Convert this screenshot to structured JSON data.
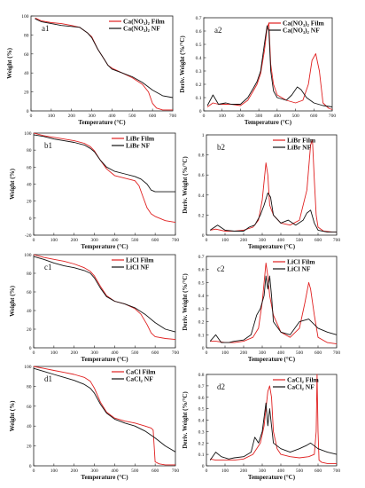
{
  "chart_data": [
    {
      "panel": "a1",
      "type": "line",
      "xlabel": "Temperature (°C)",
      "ylabel": "Weight (%)",
      "xlim": [
        0,
        700
      ],
      "ylim": [
        0,
        100
      ],
      "xticks": [
        0,
        100,
        200,
        300,
        400,
        500,
        600,
        700
      ],
      "yticks": [
        0,
        20,
        40,
        60,
        80,
        100
      ],
      "legend_position": "top-right",
      "series": [
        {
          "name": "Ca(NO₃)₂ Film",
          "color": "#e02020",
          "x": [
            20,
            50,
            100,
            150,
            200,
            240,
            280,
            300,
            330,
            360,
            380,
            400,
            450,
            500,
            550,
            580,
            600,
            620,
            650,
            680,
            700
          ],
          "y": [
            98,
            95,
            93,
            92,
            90,
            88,
            82,
            78,
            65,
            55,
            48,
            45,
            40,
            35,
            28,
            20,
            8,
            3,
            1,
            1,
            1
          ]
        },
        {
          "name": "Ca(NO₃)₂ NF",
          "color": "#111111",
          "x": [
            20,
            50,
            100,
            150,
            200,
            240,
            280,
            300,
            330,
            360,
            380,
            400,
            450,
            500,
            550,
            600,
            650,
            700
          ],
          "y": [
            97,
            94,
            92,
            90,
            89,
            88,
            82,
            77,
            65,
            55,
            48,
            44,
            40,
            36,
            30,
            22,
            16,
            14
          ]
        }
      ]
    },
    {
      "panel": "a2",
      "type": "line",
      "xlabel": "Temperature (°C)",
      "ylabel": "Deriv. Weight (%/°C)",
      "xlim": [
        0,
        700
      ],
      "ylim": [
        0,
        0.7
      ],
      "xticks": [
        0,
        100,
        200,
        300,
        400,
        500,
        600,
        700
      ],
      "yticks": [
        0,
        0.1,
        0.2,
        0.3,
        0.4,
        0.5,
        0.6,
        0.7
      ],
      "legend_position": "top-right",
      "series": [
        {
          "name": "Ca(NO₃)₂ Film",
          "color": "#e02020",
          "x": [
            20,
            50,
            80,
            120,
            150,
            200,
            240,
            270,
            290,
            310,
            330,
            345,
            355,
            365,
            380,
            400,
            450,
            500,
            540,
            570,
            590,
            610,
            630,
            650,
            680,
            700
          ],
          "y": [
            0.03,
            0.06,
            0.05,
            0.05,
            0.05,
            0.04,
            0.08,
            0.15,
            0.2,
            0.28,
            0.45,
            0.62,
            0.66,
            0.35,
            0.2,
            0.12,
            0.08,
            0.06,
            0.08,
            0.2,
            0.38,
            0.43,
            0.3,
            0.06,
            0.02,
            0.01
          ]
        },
        {
          "name": "Ca(NO₃)₂ NF",
          "color": "#111111",
          "x": [
            20,
            50,
            80,
            120,
            150,
            200,
            240,
            270,
            290,
            310,
            330,
            345,
            355,
            365,
            380,
            400,
            450,
            480,
            510,
            530,
            560,
            600,
            650,
            700
          ],
          "y": [
            0.04,
            0.12,
            0.05,
            0.06,
            0.05,
            0.05,
            0.1,
            0.17,
            0.22,
            0.3,
            0.5,
            0.64,
            0.6,
            0.3,
            0.15,
            0.1,
            0.08,
            0.12,
            0.18,
            0.16,
            0.1,
            0.06,
            0.04,
            0.03
          ]
        }
      ]
    },
    {
      "panel": "b1",
      "type": "line",
      "xlabel": "Temperature (°C)",
      "ylabel": "Weight (%)",
      "xlim": [
        0,
        700
      ],
      "ylim": [
        -20,
        100
      ],
      "xticks": [
        0,
        100,
        200,
        300,
        400,
        500,
        600,
        700
      ],
      "yticks": [
        -20,
        0,
        20,
        40,
        60,
        80,
        100
      ],
      "legend_position": "top-right",
      "series": [
        {
          "name": "LiBr Film",
          "color": "#e02020",
          "x": [
            0,
            50,
            100,
            150,
            200,
            250,
            280,
            300,
            330,
            360,
            400,
            450,
            500,
            520,
            540,
            560,
            580,
            600,
            620,
            650,
            700
          ],
          "y": [
            100,
            97,
            95,
            93,
            91,
            88,
            84,
            79,
            68,
            58,
            50,
            47,
            44,
            38,
            25,
            12,
            5,
            2,
            0,
            -3,
            -5
          ]
        },
        {
          "name": "LiBr NF",
          "color": "#111111",
          "x": [
            0,
            50,
            100,
            150,
            200,
            250,
            280,
            300,
            330,
            360,
            400,
            450,
            500,
            530,
            560,
            580,
            600,
            700
          ],
          "y": [
            98,
            96,
            93,
            91,
            89,
            86,
            82,
            78,
            68,
            60,
            55,
            52,
            49,
            46,
            40,
            33,
            31,
            31
          ]
        }
      ]
    },
    {
      "panel": "b2",
      "type": "line",
      "xlabel": "Temperature (°C)",
      "ylabel": "Deriv. Weight (%/°C)",
      "xlim": [
        0,
        700
      ],
      "ylim": [
        0,
        1
      ],
      "xticks": [
        0,
        100,
        200,
        300,
        400,
        500,
        600,
        700
      ],
      "yticks": [
        0,
        0.2,
        0.4,
        0.6,
        0.8,
        1
      ],
      "legend_position": "top-right",
      "series": [
        {
          "name": "LiBr Film",
          "color": "#e02020",
          "x": [
            20,
            50,
            100,
            150,
            200,
            250,
            280,
            300,
            320,
            330,
            340,
            360,
            400,
            450,
            500,
            540,
            560,
            570,
            580,
            590,
            600,
            630,
            680,
            700
          ],
          "y": [
            0.05,
            0.06,
            0.04,
            0.04,
            0.05,
            0.08,
            0.15,
            0.35,
            0.72,
            0.6,
            0.3,
            0.2,
            0.12,
            0.1,
            0.15,
            0.45,
            0.9,
            0.95,
            0.55,
            0.2,
            0.08,
            0.04,
            0.03,
            0.03
          ]
        },
        {
          "name": "LiBr NF",
          "color": "#111111",
          "x": [
            20,
            60,
            100,
            150,
            200,
            230,
            260,
            290,
            310,
            330,
            345,
            360,
            400,
            440,
            480,
            520,
            540,
            560,
            580,
            600,
            650,
            700
          ],
          "y": [
            0.05,
            0.1,
            0.05,
            0.04,
            0.04,
            0.08,
            0.1,
            0.2,
            0.3,
            0.42,
            0.38,
            0.2,
            0.12,
            0.15,
            0.1,
            0.15,
            0.22,
            0.25,
            0.12,
            0.05,
            0.03,
            0.03
          ]
        }
      ]
    },
    {
      "panel": "c1",
      "type": "line",
      "xlabel": "Temperature (°C)",
      "ylabel": "Weight (%)",
      "xlim": [
        0,
        700
      ],
      "ylim": [
        0,
        100
      ],
      "xticks": [
        0,
        100,
        200,
        300,
        400,
        500,
        600,
        700
      ],
      "yticks": [
        0,
        20,
        40,
        60,
        80,
        100
      ],
      "legend_position": "top-right",
      "series": [
        {
          "name": "LiCl Film",
          "color": "#e02020",
          "x": [
            0,
            50,
            100,
            150,
            200,
            250,
            280,
            300,
            330,
            360,
            400,
            450,
            500,
            530,
            560,
            580,
            600,
            650,
            700
          ],
          "y": [
            100,
            97,
            95,
            93,
            90,
            86,
            82,
            77,
            66,
            56,
            50,
            47,
            42,
            36,
            25,
            16,
            12,
            10,
            9
          ]
        },
        {
          "name": "LiCl NF",
          "color": "#111111",
          "x": [
            0,
            50,
            100,
            150,
            200,
            250,
            280,
            300,
            330,
            360,
            400,
            450,
            500,
            550,
            600,
            650,
            700
          ],
          "y": [
            98,
            95,
            91,
            88,
            86,
            83,
            80,
            75,
            64,
            55,
            50,
            47,
            43,
            36,
            27,
            20,
            17
          ]
        }
      ]
    },
    {
      "panel": "c2",
      "type": "line",
      "xlabel": "Temperature (°C)",
      "ylabel": "Deriv. Weight (%/°C)",
      "xlim": [
        0,
        700
      ],
      "ylim": [
        0,
        0.7
      ],
      "xticks": [
        0,
        100,
        200,
        300,
        400,
        500,
        600,
        700
      ],
      "yticks": [
        0,
        0.1,
        0.2,
        0.3,
        0.4,
        0.5,
        0.6,
        0.7
      ],
      "legend_position": "top-right",
      "series": [
        {
          "name": "LiCl Film",
          "color": "#e02020",
          "x": [
            20,
            50,
            100,
            150,
            200,
            250,
            280,
            300,
            320,
            330,
            340,
            360,
            400,
            450,
            500,
            530,
            550,
            560,
            580,
            600,
            650,
            700
          ],
          "y": [
            0.05,
            0.05,
            0.04,
            0.04,
            0.05,
            0.08,
            0.15,
            0.35,
            0.65,
            0.55,
            0.4,
            0.25,
            0.12,
            0.08,
            0.15,
            0.35,
            0.5,
            0.45,
            0.25,
            0.08,
            0.04,
            0.03
          ]
        },
        {
          "name": "LiCl NF",
          "color": "#111111",
          "x": [
            20,
            50,
            80,
            120,
            150,
            200,
            240,
            270,
            290,
            310,
            320,
            330,
            340,
            350,
            360,
            400,
            450,
            500,
            550,
            600,
            650,
            700
          ],
          "y": [
            0.05,
            0.1,
            0.04,
            0.04,
            0.05,
            0.06,
            0.1,
            0.25,
            0.3,
            0.4,
            0.55,
            0.45,
            0.55,
            0.4,
            0.2,
            0.12,
            0.1,
            0.2,
            0.22,
            0.15,
            0.12,
            0.1
          ]
        }
      ]
    },
    {
      "panel": "d1",
      "type": "line",
      "xlabel": "Temperature (°C)",
      "ylabel": "Weight (%)",
      "xlim": [
        0,
        700
      ],
      "ylim": [
        0,
        100
      ],
      "xticks": [
        0,
        100,
        200,
        300,
        400,
        500,
        600,
        700
      ],
      "yticks": [
        0,
        20,
        40,
        60,
        80,
        100
      ],
      "legend_position": "top-right",
      "series": [
        {
          "name": "CaCl Film",
          "color": "#e02020",
          "x": [
            0,
            50,
            100,
            150,
            200,
            250,
            280,
            300,
            330,
            360,
            400,
            450,
            500,
            550,
            580,
            590,
            595,
            600,
            620,
            650,
            700
          ],
          "y": [
            100,
            98,
            96,
            94,
            92,
            89,
            85,
            78,
            64,
            54,
            48,
            45,
            43,
            40,
            38,
            36,
            20,
            4,
            2,
            1,
            1
          ]
        },
        {
          "name": "CaCl₂ NF",
          "color": "#111111",
          "x": [
            0,
            50,
            100,
            150,
            200,
            250,
            280,
            300,
            330,
            360,
            400,
            450,
            500,
            550,
            600,
            650,
            700
          ],
          "y": [
            98,
            95,
            92,
            89,
            86,
            82,
            78,
            73,
            62,
            53,
            47,
            43,
            40,
            35,
            28,
            20,
            14
          ]
        }
      ]
    },
    {
      "panel": "d2",
      "type": "line",
      "xlabel": "Temperature (°C)",
      "ylabel": "Deriv. Weight (%/°C)",
      "xlim": [
        0,
        700
      ],
      "ylim": [
        0,
        0.8
      ],
      "xticks": [
        0,
        100,
        200,
        300,
        400,
        500,
        600,
        700
      ],
      "yticks": [
        0,
        0.1,
        0.2,
        0.3,
        0.4,
        0.5,
        0.6,
        0.7,
        0.8
      ],
      "legend_position": "top-right",
      "series": [
        {
          "name": "CaCl₂ Film",
          "color": "#e02020",
          "x": [
            20,
            50,
            100,
            150,
            200,
            250,
            270,
            290,
            310,
            330,
            340,
            350,
            360,
            380,
            400,
            450,
            500,
            550,
            580,
            590,
            595,
            600,
            605,
            620,
            650,
            700
          ],
          "y": [
            0.06,
            0.05,
            0.05,
            0.05,
            0.06,
            0.1,
            0.15,
            0.2,
            0.35,
            0.65,
            0.7,
            0.6,
            0.3,
            0.15,
            0.1,
            0.08,
            0.07,
            0.08,
            0.1,
            0.3,
            0.8,
            0.3,
            0.05,
            0.03,
            0.02,
            0.02
          ]
        },
        {
          "name": "CaCl₂ NF",
          "color": "#111111",
          "x": [
            20,
            50,
            80,
            120,
            150,
            200,
            240,
            260,
            280,
            300,
            320,
            330,
            340,
            360,
            400,
            450,
            500,
            540,
            560,
            600,
            650,
            700
          ],
          "y": [
            0.05,
            0.12,
            0.08,
            0.06,
            0.07,
            0.08,
            0.12,
            0.25,
            0.2,
            0.3,
            0.55,
            0.35,
            0.5,
            0.2,
            0.15,
            0.12,
            0.15,
            0.18,
            0.2,
            0.15,
            0.12,
            0.1
          ]
        }
      ]
    }
  ]
}
